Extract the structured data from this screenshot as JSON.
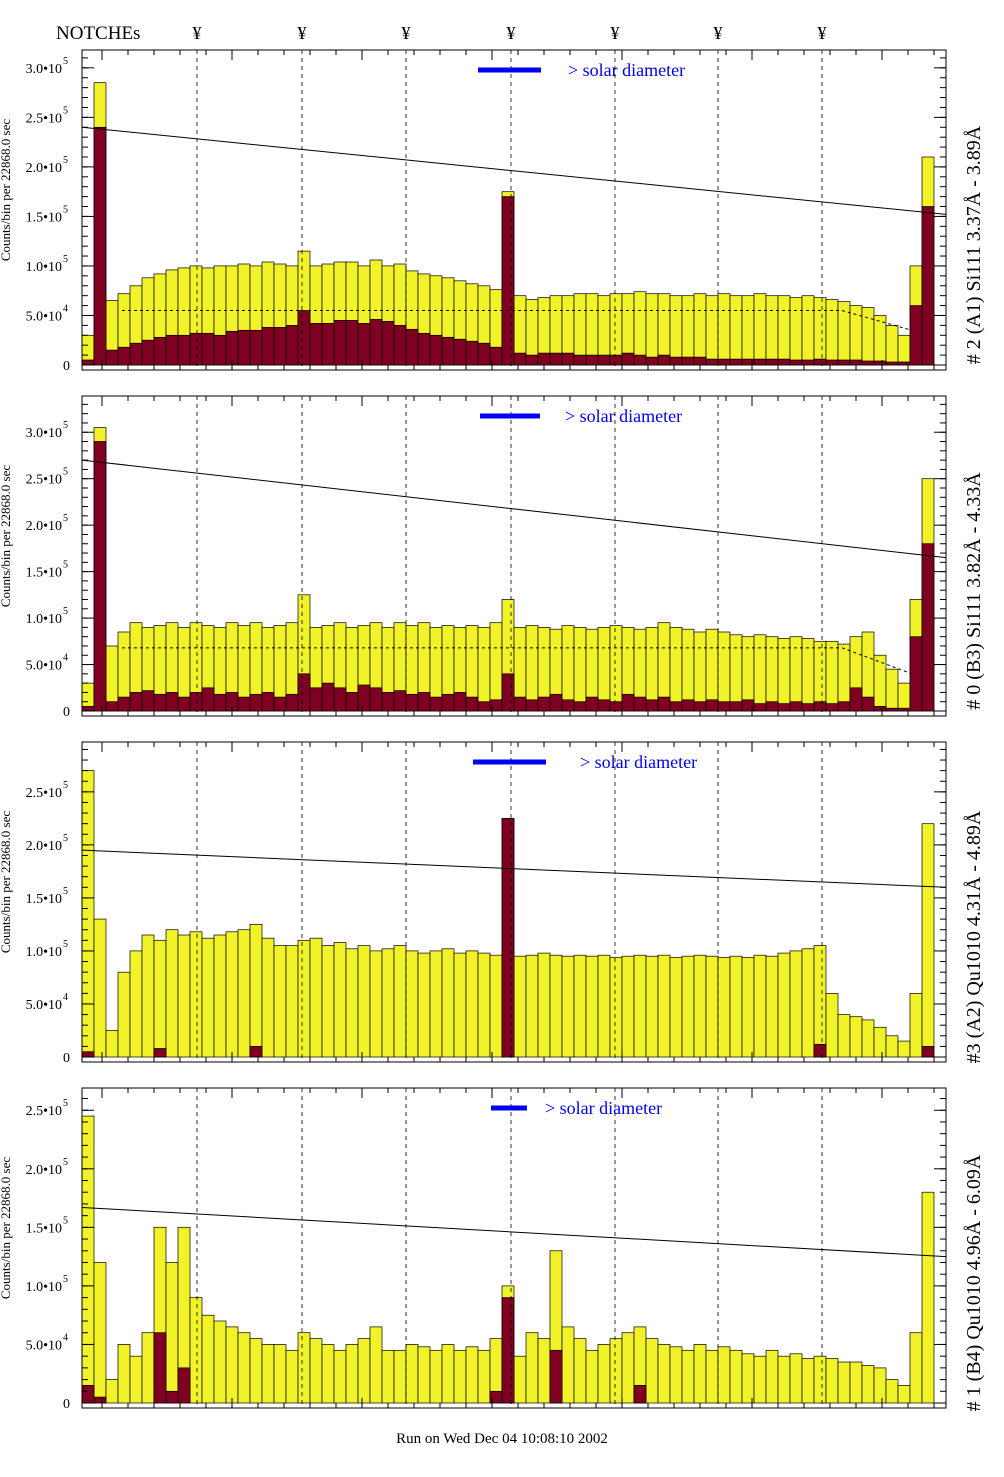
{
  "header": {
    "notches_label": "NOTCHEs",
    "notch_symbol": "¥",
    "notch_count": 7
  },
  "footer": {
    "run_text": "Run on Wed Dec 04 10:08:10 2002"
  },
  "colors": {
    "fill_total": "#f2f229",
    "fill_sub": "#7f0020",
    "legend": "#0000ee",
    "line": "#000000"
  },
  "chart_data": [
    {
      "type": "bar",
      "title": "# 2 (A1) Si111  3.37Å - 3.89Å",
      "ylabel": "Counts/bin per  22868.0 sec",
      "legend_text": "> solar diameter",
      "ylim": [
        0,
        318000
      ],
      "yticks": [
        {
          "v": 0,
          "t": "0"
        },
        {
          "v": 50000,
          "t": "5.0•10",
          "e": "4"
        },
        {
          "v": 100000,
          "t": "1.0•10",
          "e": "5"
        },
        {
          "v": 150000,
          "t": "1.5•10",
          "e": "5"
        },
        {
          "v": 200000,
          "t": "2.0•10",
          "e": "5"
        },
        {
          "v": 250000,
          "t": "2.5•10",
          "e": "5"
        },
        {
          "v": 300000,
          "t": "3.0•10",
          "e": "5"
        }
      ],
      "units_k": 1000,
      "series": [
        {
          "values": [
            30,
            285,
            65,
            72,
            80,
            88,
            92,
            96,
            98,
            100,
            98,
            100,
            100,
            102,
            100,
            104,
            102,
            100,
            115,
            100,
            102,
            104,
            104,
            100,
            106,
            100,
            102,
            95,
            92,
            90,
            88,
            85,
            82,
            80,
            76,
            175,
            70,
            66,
            68,
            70,
            70,
            72,
            72,
            70,
            72,
            72,
            74,
            72,
            72,
            70,
            70,
            72,
            70,
            72,
            70,
            70,
            72,
            70,
            70,
            68,
            70,
            68,
            66,
            64,
            60,
            58,
            50,
            40,
            30,
            100,
            210,
            0
          ]
        },
        {
          "values": [
            5,
            240,
            15,
            18,
            22,
            25,
            28,
            30,
            30,
            32,
            32,
            30,
            34,
            35,
            35,
            38,
            38,
            40,
            55,
            42,
            42,
            45,
            45,
            42,
            46,
            44,
            40,
            36,
            32,
            30,
            28,
            26,
            24,
            22,
            18,
            170,
            12,
            10,
            12,
            12,
            12,
            10,
            10,
            10,
            10,
            12,
            10,
            8,
            10,
            8,
            8,
            8,
            6,
            6,
            6,
            6,
            6,
            6,
            6,
            5,
            5,
            6,
            5,
            5,
            5,
            4,
            4,
            3,
            3,
            60,
            160,
            0
          ]
        }
      ],
      "fit_line": [
        240,
        152
      ],
      "dashed_level": [
        55,
        55,
        35
      ]
    },
    {
      "type": "bar",
      "title": "# 0 (B3) Si111  3.82Å - 4.33Å",
      "ylabel": "Counts/bin per  22868.0 sec",
      "legend_text": "> solar diameter",
      "ylim": [
        0,
        339000
      ],
      "yticks": [
        {
          "v": 0,
          "t": "0"
        },
        {
          "v": 50000,
          "t": "5.0•10",
          "e": "4"
        },
        {
          "v": 100000,
          "t": "1.0•10",
          "e": "5"
        },
        {
          "v": 150000,
          "t": "1.5•10",
          "e": "5"
        },
        {
          "v": 200000,
          "t": "2.0•10",
          "e": "5"
        },
        {
          "v": 250000,
          "t": "2.5•10",
          "e": "5"
        },
        {
          "v": 300000,
          "t": "3.0•10",
          "e": "5"
        }
      ],
      "units_k": 1000,
      "series": [
        {
          "values": [
            30,
            305,
            70,
            85,
            95,
            90,
            92,
            95,
            90,
            95,
            92,
            90,
            95,
            92,
            95,
            90,
            92,
            95,
            125,
            90,
            92,
            95,
            90,
            92,
            95,
            90,
            95,
            92,
            95,
            90,
            92,
            90,
            92,
            90,
            95,
            120,
            90,
            92,
            90,
            88,
            92,
            90,
            88,
            90,
            92,
            90,
            88,
            90,
            95,
            90,
            88,
            85,
            88,
            85,
            82,
            80,
            82,
            80,
            78,
            80,
            78,
            75,
            75,
            72,
            80,
            85,
            60,
            45,
            30,
            120,
            250,
            0
          ]
        },
        {
          "values": [
            5,
            290,
            10,
            15,
            20,
            22,
            18,
            20,
            15,
            20,
            25,
            18,
            20,
            15,
            18,
            20,
            15,
            18,
            40,
            25,
            30,
            25,
            20,
            28,
            25,
            20,
            22,
            18,
            20,
            15,
            18,
            20,
            15,
            10,
            12,
            40,
            15,
            12,
            15,
            18,
            12,
            10,
            15,
            12,
            10,
            18,
            15,
            12,
            15,
            10,
            12,
            10,
            12,
            10,
            10,
            12,
            8,
            10,
            8,
            10,
            8,
            10,
            8,
            10,
            25,
            15,
            5,
            3,
            3,
            80,
            180,
            0
          ]
        }
      ],
      "fit_line": [
        270,
        165
      ],
      "dashed_level": [
        68,
        68,
        40
      ]
    },
    {
      "type": "bar",
      "title": "#3 (A2) Qu1010  4.31Å - 4.89Å",
      "ylabel": "Counts/bin per  22868.0 sec",
      "legend_text": "> solar diameter",
      "ylim": [
        0,
        297000
      ],
      "yticks": [
        {
          "v": 0,
          "t": "0"
        },
        {
          "v": 50000,
          "t": "5.0•10",
          "e": "4"
        },
        {
          "v": 100000,
          "t": "1.0•10",
          "e": "5"
        },
        {
          "v": 150000,
          "t": "1.5•10",
          "e": "5"
        },
        {
          "v": 200000,
          "t": "2.0•10",
          "e": "5"
        },
        {
          "v": 250000,
          "t": "2.5•10",
          "e": "5"
        }
      ],
      "units_k": 1000,
      "series": [
        {
          "values": [
            270,
            130,
            25,
            80,
            100,
            115,
            110,
            120,
            115,
            118,
            112,
            115,
            118,
            120,
            125,
            112,
            105,
            105,
            110,
            112,
            105,
            108,
            102,
            105,
            100,
            102,
            105,
            100,
            98,
            100,
            102,
            98,
            100,
            98,
            96,
            225,
            95,
            96,
            98,
            96,
            95,
            96,
            95,
            96,
            94,
            95,
            96,
            95,
            96,
            94,
            95,
            96,
            95,
            94,
            95,
            94,
            96,
            95,
            98,
            100,
            102,
            105,
            60,
            40,
            38,
            35,
            28,
            20,
            15,
            60,
            220,
            0
          ]
        },
        {
          "values": [
            5,
            0,
            0,
            0,
            0,
            0,
            8,
            0,
            0,
            0,
            0,
            0,
            0,
            0,
            10,
            0,
            0,
            0,
            0,
            0,
            0,
            0,
            0,
            0,
            0,
            0,
            0,
            0,
            0,
            0,
            0,
            0,
            0,
            0,
            0,
            225,
            0,
            0,
            0,
            0,
            0,
            0,
            0,
            0,
            0,
            0,
            0,
            0,
            0,
            0,
            0,
            0,
            0,
            0,
            0,
            0,
            0,
            0,
            0,
            0,
            0,
            12,
            0,
            0,
            0,
            0,
            0,
            0,
            0,
            0,
            10,
            0
          ]
        }
      ],
      "fit_line": [
        195,
        160
      ],
      "dashed_level": null
    },
    {
      "type": "bar",
      "title": "# 1 (B4) Qu1010 4.96Å - 6.09Å",
      "ylabel": "Counts/bin per  22868.0 sec",
      "legend_text": "> solar diameter",
      "ylim": [
        0,
        269000
      ],
      "yticks": [
        {
          "v": 0,
          "t": "0"
        },
        {
          "v": 50000,
          "t": "5.0•10",
          "e": "4"
        },
        {
          "v": 100000,
          "t": "1.0•10",
          "e": "5"
        },
        {
          "v": 150000,
          "t": "1.5•10",
          "e": "5"
        },
        {
          "v": 200000,
          "t": "2.0•10",
          "e": "5"
        },
        {
          "v": 250000,
          "t": "2.5•10",
          "e": "5"
        }
      ],
      "units_k": 1000,
      "series": [
        {
          "values": [
            245,
            120,
            20,
            50,
            40,
            60,
            150,
            120,
            150,
            90,
            75,
            70,
            65,
            60,
            55,
            50,
            50,
            45,
            60,
            55,
            50,
            45,
            50,
            55,
            65,
            45,
            45,
            50,
            48,
            45,
            50,
            45,
            48,
            45,
            55,
            100,
            40,
            60,
            55,
            130,
            65,
            55,
            45,
            50,
            55,
            60,
            65,
            55,
            50,
            48,
            45,
            50,
            45,
            48,
            45,
            42,
            40,
            45,
            40,
            42,
            38,
            40,
            38,
            35,
            35,
            32,
            30,
            20,
            15,
            60,
            180,
            0
          ]
        },
        {
          "values": [
            15,
            5,
            0,
            0,
            0,
            0,
            60,
            10,
            30,
            0,
            0,
            0,
            0,
            0,
            0,
            0,
            0,
            0,
            0,
            0,
            0,
            0,
            0,
            0,
            0,
            0,
            0,
            0,
            0,
            0,
            0,
            0,
            0,
            0,
            10,
            90,
            0,
            0,
            0,
            45,
            0,
            0,
            0,
            0,
            0,
            0,
            15,
            0,
            0,
            0,
            0,
            0,
            0,
            0,
            0,
            0,
            0,
            0,
            0,
            0,
            0,
            0,
            0,
            0,
            0,
            0,
            0,
            0,
            0,
            0,
            0,
            0
          ]
        }
      ],
      "fit_line": [
        167,
        125
      ],
      "dashed_level": null
    }
  ]
}
